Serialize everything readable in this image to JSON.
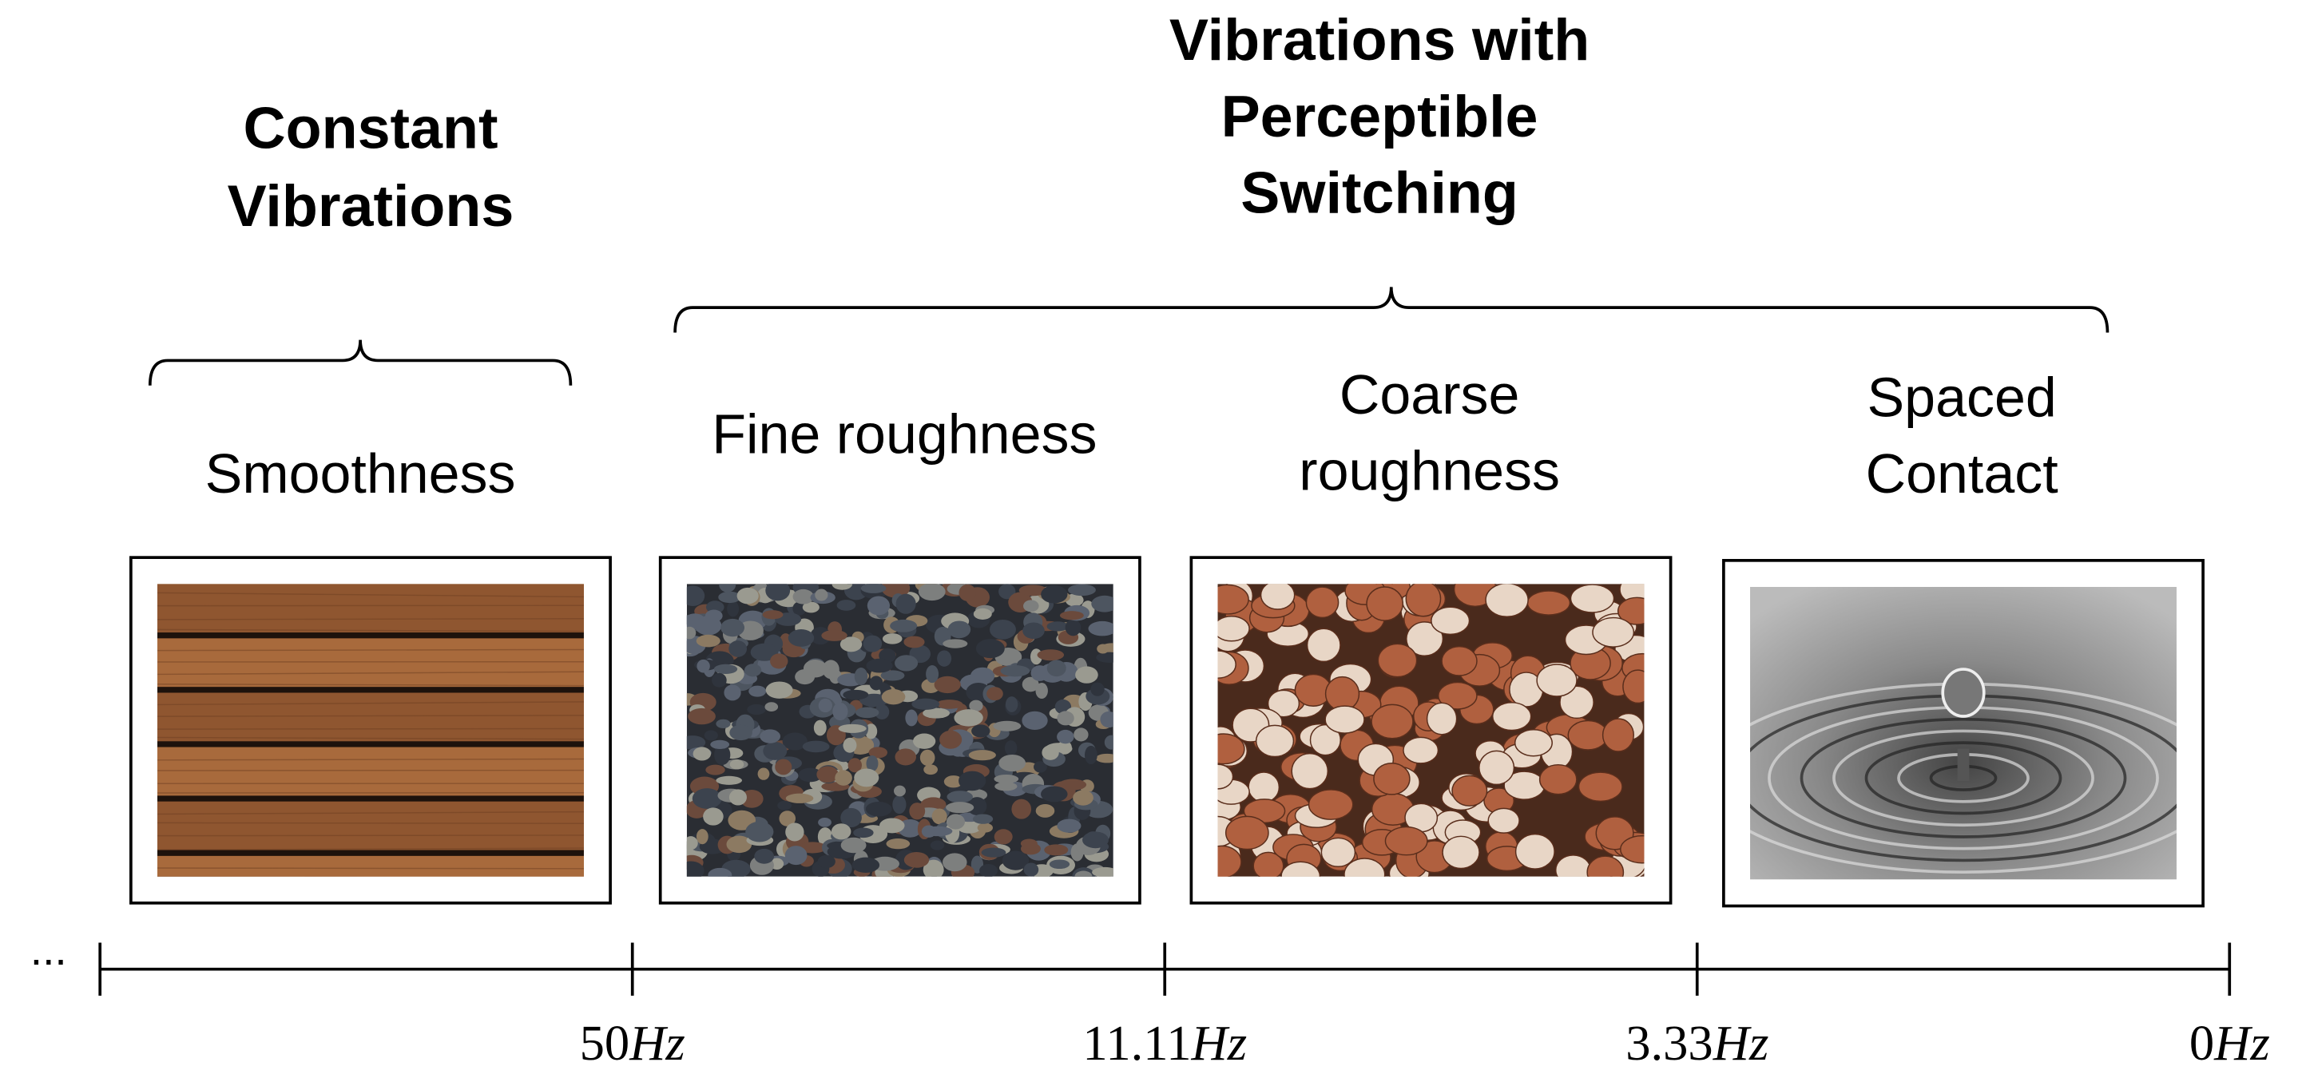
{
  "groups": [
    {
      "title": [
        "Constant",
        "Vibrations"
      ]
    },
    {
      "title": [
        "Vibrations with",
        "Perceptible",
        "Switching"
      ]
    }
  ],
  "textures": [
    {
      "label": [
        "Smoothness"
      ]
    },
    {
      "label": [
        "Fine roughness"
      ]
    },
    {
      "label": [
        "Coarse",
        "roughness"
      ]
    },
    {
      "label": [
        "Spaced",
        "Contact"
      ]
    }
  ],
  "axis": {
    "ellipsis": "...",
    "ticks": [
      {
        "number": "50",
        "unit": "Hz"
      },
      {
        "number": "11.11",
        "unit": "Hz"
      },
      {
        "number": "3.33",
        "unit": "Hz"
      },
      {
        "number": "0",
        "unit": "Hz"
      }
    ]
  }
}
